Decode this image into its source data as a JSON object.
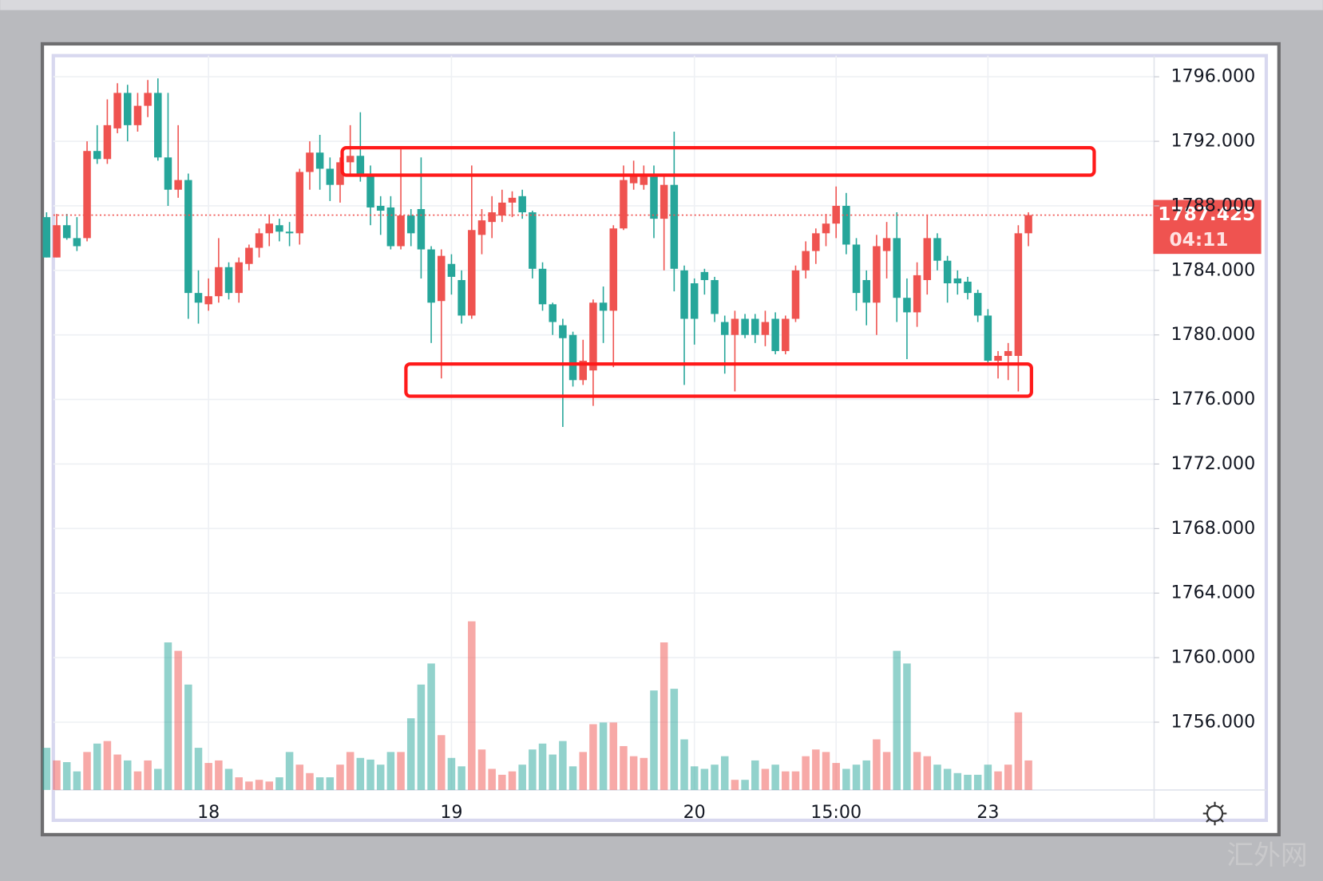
{
  "chart_data": {
    "type": "candlestick",
    "up_color": "#ef5350",
    "down_color": "#26a69a",
    "categories": [
      null,
      null,
      null,
      null,
      null,
      null,
      null,
      null,
      null,
      null,
      null,
      null,
      null,
      null,
      null,
      null,
      "18",
      null,
      null,
      null,
      null,
      null,
      null,
      null,
      null,
      null,
      null,
      null,
      null,
      null,
      null,
      null,
      null,
      null,
      null,
      null,
      null,
      null,
      null,
      null,
      "19",
      null,
      null,
      null,
      null,
      null,
      null,
      null,
      null,
      null,
      null,
      null,
      null,
      null,
      null,
      null,
      null,
      null,
      null,
      null,
      null,
      null,
      null,
      null,
      "20",
      null,
      null,
      null,
      null,
      null,
      null,
      null,
      null,
      null,
      null,
      null,
      null,
      null,
      "15:00",
      null,
      null,
      null,
      null,
      null,
      null,
      null,
      null,
      null,
      null,
      null,
      null,
      null,
      null,
      "23",
      null,
      null,
      null,
      null
    ],
    "open": [
      1787.3,
      1784.8,
      1786.8,
      1786.0,
      1786.0,
      1791.4,
      1790.9,
      1792.8,
      1795.0,
      1793.0,
      1794.2,
      1795.0,
      1791.0,
      1789.0,
      1789.6,
      1782.6,
      1781.9,
      1782.4,
      1784.2,
      1782.6,
      1784.4,
      1785.4,
      1786.3,
      1786.8,
      1786.4,
      1786.3,
      1790.1,
      1791.3,
      1790.3,
      1789.3,
      1790.7,
      1791.1,
      1789.9,
      1788.0,
      1787.9,
      1785.5,
      1787.4,
      1787.8,
      1785.3,
      1782.1,
      1784.4,
      1783.4,
      1781.2,
      1786.2,
      1787.0,
      1787.4,
      1788.2,
      1788.6,
      1787.6,
      1784.1,
      1781.9,
      1780.6,
      1780.0,
      1777.2,
      1777.8,
      1782.0,
      1781.5,
      1786.6,
      1789.4,
      1789.3,
      1789.8,
      1787.2,
      1789.3,
      1784.0,
      1783.2,
      1783.9,
      1783.4,
      1780.8,
      1780.0,
      1781.0,
      1781.0,
      1780.0,
      1781.0,
      1779.0,
      1781.0,
      1784.0,
      1785.2,
      1786.3,
      1786.9,
      1788.0,
      1785.6,
      1783.4,
      1782.0,
      1785.2,
      1786.0,
      1782.3,
      1781.4,
      1783.4,
      1786.0,
      1784.6,
      1783.5,
      1783.3,
      1782.6,
      1781.2,
      1778.4,
      1778.7,
      1778.7,
      1786.3
    ],
    "high": [
      1787.6,
      1787.5,
      1787.5,
      1787.3,
      1792.0,
      1793.0,
      1794.6,
      1795.6,
      1795.5,
      1795.0,
      1795.8,
      1795.9,
      1795.0,
      1793.0,
      1790.0,
      1784.0,
      1783.5,
      1786.0,
      1784.5,
      1784.8,
      1785.6,
      1786.6,
      1787.4,
      1787.2,
      1787.0,
      1790.3,
      1792.0,
      1792.4,
      1791.0,
      1791.0,
      1793.0,
      1793.8,
      1790.5,
      1788.6,
      1788.6,
      1791.5,
      1787.8,
      1791.0,
      1785.5,
      1785.3,
      1785.0,
      1784.0,
      1790.5,
      1787.8,
      1788.6,
      1789.0,
      1788.9,
      1789.0,
      1787.7,
      1784.5,
      1782.0,
      1781.0,
      1780.2,
      1779.7,
      1782.2,
      1783.0,
      1786.8,
      1790.5,
      1790.8,
      1790.5,
      1790.5,
      1790.0,
      1792.6,
      1784.3,
      1783.5,
      1784.1,
      1783.6,
      1781.2,
      1781.5,
      1781.3,
      1781.3,
      1781.5,
      1781.4,
      1781.2,
      1784.3,
      1785.8,
      1786.6,
      1787.5,
      1789.2,
      1788.8,
      1786.0,
      1784.0,
      1786.2,
      1787.0,
      1787.6,
      1783.5,
      1784.5,
      1787.4,
      1786.3,
      1784.9,
      1784.0,
      1783.6,
      1782.8,
      1781.6,
      1779.0,
      1779.5,
      1786.8,
      1787.6
    ],
    "low": [
      1784.8,
      1784.8,
      1785.9,
      1785.2,
      1785.8,
      1790.6,
      1790.6,
      1792.5,
      1792.0,
      1792.6,
      1793.5,
      1790.8,
      1788.0,
      1788.5,
      1781.0,
      1780.7,
      1781.5,
      1782.0,
      1782.2,
      1782.0,
      1784.0,
      1784.8,
      1785.5,
      1785.8,
      1785.5,
      1785.6,
      1789.0,
      1789.0,
      1788.3,
      1788.2,
      1790.0,
      1789.5,
      1786.8,
      1786.2,
      1785.3,
      1785.3,
      1785.5,
      1783.5,
      1779.5,
      1777.3,
      1782.5,
      1780.7,
      1781.0,
      1785.0,
      1786.0,
      1787.0,
      1787.3,
      1787.2,
      1783.5,
      1781.5,
      1780.0,
      1774.3,
      1776.8,
      1776.9,
      1775.6,
      1779.5,
      1778.0,
      1786.5,
      1789.0,
      1789.0,
      1786.0,
      1784.0,
      1782.7,
      1776.9,
      1779.4,
      1782.5,
      1780.8,
      1777.6,
      1776.5,
      1779.8,
      1779.5,
      1779.3,
      1778.8,
      1778.8,
      1780.8,
      1783.5,
      1784.4,
      1785.5,
      1786.0,
      1785.0,
      1781.5,
      1780.6,
      1780.0,
      1783.5,
      1780.8,
      1778.5,
      1780.5,
      1782.5,
      1784.0,
      1782.0,
      1782.5,
      1782.2,
      1780.8,
      1778.2,
      1777.3,
      1777.2,
      1776.5,
      1785.5
    ],
    "close": [
      1784.8,
      1786.8,
      1786.0,
      1785.5,
      1791.4,
      1790.9,
      1793.0,
      1795.0,
      1793.0,
      1794.2,
      1795.0,
      1791.0,
      1789.0,
      1789.6,
      1782.6,
      1782.0,
      1782.4,
      1784.2,
      1782.6,
      1784.5,
      1785.4,
      1786.3,
      1786.9,
      1786.4,
      1786.3,
      1790.1,
      1791.3,
      1790.3,
      1789.3,
      1790.7,
      1791.1,
      1789.9,
      1787.9,
      1787.7,
      1785.5,
      1787.4,
      1786.3,
      1785.3,
      1782.0,
      1784.9,
      1783.6,
      1781.2,
      1786.5,
      1787.1,
      1787.6,
      1788.2,
      1788.5,
      1787.6,
      1784.1,
      1781.9,
      1780.8,
      1779.8,
      1777.2,
      1778.4,
      1782.0,
      1781.5,
      1786.6,
      1789.6,
      1789.9,
      1789.8,
      1787.2,
      1789.3,
      1784.1,
      1781.0,
      1781.0,
      1783.4,
      1781.3,
      1780.0,
      1781.0,
      1780.0,
      1780.0,
      1780.8,
      1779.0,
      1781.0,
      1784.0,
      1785.2,
      1786.3,
      1786.9,
      1788.0,
      1785.6,
      1782.6,
      1782.0,
      1785.5,
      1786.0,
      1782.3,
      1781.4,
      1783.7,
      1786.0,
      1784.6,
      1783.2,
      1783.2,
      1782.6,
      1781.2,
      1778.4,
      1778.7,
      1779.0,
      1786.3,
      1787.425
    ],
    "volume": [
      50,
      35,
      33,
      22,
      45,
      55,
      58,
      42,
      35,
      22,
      35,
      25,
      175,
      165,
      125,
      50,
      32,
      35,
      25,
      15,
      10,
      12,
      10,
      15,
      45,
      30,
      20,
      15,
      15,
      30,
      45,
      38,
      36,
      30,
      45,
      45,
      85,
      125,
      150,
      65,
      38,
      28,
      200,
      48,
      25,
      18,
      22,
      30,
      48,
      55,
      42,
      58,
      28,
      45,
      78,
      80,
      80,
      52,
      40,
      38,
      118,
      175,
      120,
      60,
      28,
      25,
      30,
      40,
      12,
      12,
      35,
      25,
      30,
      22,
      22,
      40,
      48,
      45,
      32,
      25,
      30,
      35,
      60,
      45,
      165,
      150,
      45,
      40,
      30,
      25,
      20,
      18,
      18,
      30,
      22,
      30,
      92,
      35
    ],
    "ylim": [
      1751.8,
      1797.1
    ],
    "yticks": [
      {
        "value": 1756,
        "label": "1756.000"
      },
      {
        "value": 1760,
        "label": "1760.000"
      },
      {
        "value": 1764,
        "label": "1764.000"
      },
      {
        "value": 1768,
        "label": "1768.000"
      },
      {
        "value": 1772,
        "label": "1772.000"
      },
      {
        "value": 1776,
        "label": "1776.000"
      },
      {
        "value": 1780,
        "label": "1780.000"
      },
      {
        "value": 1784,
        "label": "1784.000"
      },
      {
        "value": 1788,
        "label": "1788.000"
      },
      {
        "value": 1792,
        "label": "1792.000"
      },
      {
        "value": 1796,
        "label": "1796.000"
      }
    ],
    "grid": true,
    "countdown": "04:11",
    "boxes": [
      {
        "x": [
          29.2,
          103.5
        ],
        "y": [
          1789.9,
          1791.6
        ],
        "color": "#ff1a1a"
      },
      {
        "x": [
          35.5,
          97.3
        ],
        "y": [
          1776.2,
          1778.2
        ],
        "color": "#ff1a1a"
      }
    ]
  },
  "watermark": "汇外网"
}
